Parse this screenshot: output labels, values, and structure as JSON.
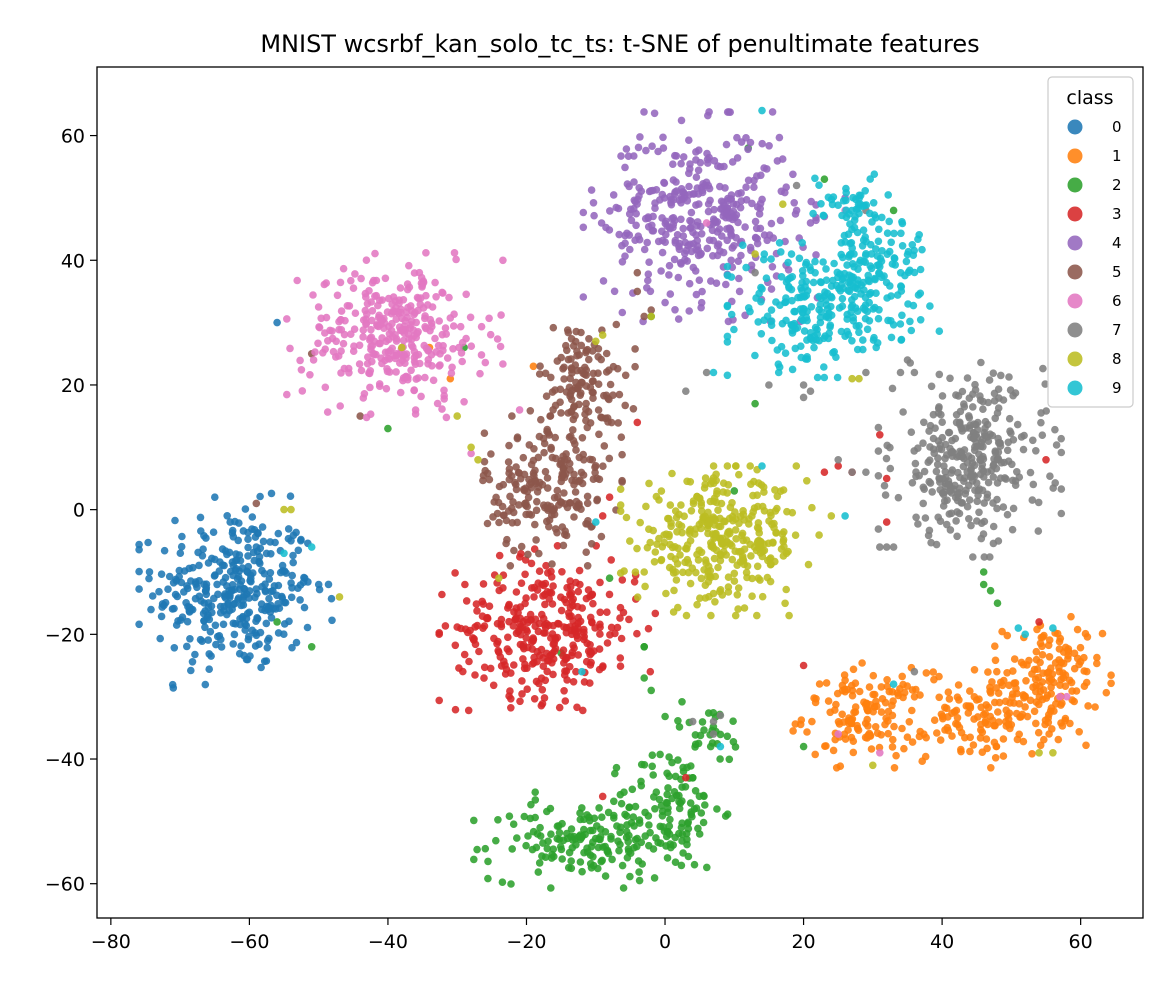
{
  "chart_data": {
    "type": "scatter",
    "title": "MNIST wcsrbf_kan_solo_tc_ts: t-SNE of penultimate features",
    "xlabel": "",
    "ylabel": "",
    "xlim": [
      -82,
      69
    ],
    "ylim": [
      -65.5,
      71
    ],
    "xticks": [
      -80,
      -60,
      -40,
      -20,
      0,
      20,
      40,
      60
    ],
    "yticks": [
      -60,
      -40,
      -20,
      0,
      20,
      40,
      60
    ],
    "grid": false,
    "legend": {
      "title": "class",
      "placement": "top-right"
    },
    "series": [
      {
        "name": "0",
        "color": "#1f77b4",
        "clusters": [
          {
            "cx": -62,
            "cy": -13,
            "sx": 5.8,
            "sy": 6.5,
            "n": 340
          }
        ],
        "points": [
          [
            -65,
            2
          ],
          [
            -54,
            -5
          ],
          [
            -52,
            -11
          ],
          [
            -50,
            -12
          ],
          [
            -56,
            30
          ]
        ]
      },
      {
        "name": "1",
        "color": "#ff7f0e",
        "clusters": [
          {
            "cx": 29,
            "cy": -33,
            "sx": 4.5,
            "sy": 3.5,
            "n": 140
          },
          {
            "cx": 47,
            "cy": -33,
            "sx": 4.5,
            "sy": 3.5,
            "n": 130
          },
          {
            "cx": 56,
            "cy": -27,
            "sx": 3.5,
            "sy": 4.5,
            "n": 130
          }
        ],
        "points": [
          [
            -34,
            26
          ],
          [
            -31,
            21
          ],
          [
            -19,
            23
          ]
        ]
      },
      {
        "name": "2",
        "color": "#2ca02c",
        "clusters": [
          {
            "cx": -12,
            "cy": -53,
            "sx": 6.5,
            "sy": 3.2,
            "n": 160
          },
          {
            "cx": 1,
            "cy": -48,
            "sx": 3.5,
            "sy": 5,
            "n": 110
          },
          {
            "cx": 6,
            "cy": -36,
            "sx": 3,
            "sy": 2.5,
            "n": 30
          }
        ],
        "points": [
          [
            -40,
            13
          ],
          [
            -29,
            26
          ],
          [
            -2,
            31
          ],
          [
            -3,
            -27
          ],
          [
            -2,
            -29
          ],
          [
            46,
            -10
          ],
          [
            46,
            -12
          ],
          [
            47,
            -13
          ],
          [
            48,
            -15
          ],
          [
            -51,
            -22
          ],
          [
            -56,
            -18
          ],
          [
            -3,
            -22
          ],
          [
            -3,
            -22
          ],
          [
            13,
            17
          ],
          [
            12,
            58
          ],
          [
            23,
            53
          ],
          [
            33,
            48
          ],
          [
            20,
            -38
          ],
          [
            10,
            3
          ],
          [
            -8,
            -11
          ],
          [
            -15,
            -23
          ]
        ]
      },
      {
        "name": "3",
        "color": "#d62728",
        "clusters": [
          {
            "cx": -17,
            "cy": -19,
            "sx": 6.5,
            "sy": 5.5,
            "n": 330
          }
        ],
        "points": [
          [
            -4,
            14
          ],
          [
            -9,
            -1
          ],
          [
            -8,
            2
          ],
          [
            23,
            6
          ],
          [
            25,
            7
          ],
          [
            27,
            6
          ],
          [
            31,
            12
          ],
          [
            32,
            -2
          ],
          [
            32,
            5
          ],
          [
            55,
            8
          ],
          [
            3,
            -43
          ],
          [
            -9,
            -46
          ],
          [
            20,
            -25
          ],
          [
            54,
            -18
          ]
        ]
      },
      {
        "name": "4",
        "color": "#9467bd",
        "clusters": [
          {
            "cx": 5,
            "cy": 47,
            "sx": 7,
            "sy": 7,
            "n": 380
          }
        ],
        "points": [
          [
            19,
            48
          ],
          [
            21,
            46
          ],
          [
            23,
            47
          ],
          [
            26,
            50
          ],
          [
            22,
            34
          ]
        ]
      },
      {
        "name": "5",
        "color": "#8c564b",
        "clusters": [
          {
            "cx": -17,
            "cy": 3,
            "sx": 4.5,
            "sy": 5,
            "n": 200
          },
          {
            "cx": -12,
            "cy": 20,
            "sx": 3.2,
            "sy": 5,
            "n": 140
          }
        ],
        "points": [
          [
            -59,
            1
          ],
          [
            -51,
            25
          ],
          [
            -44,
            15
          ],
          [
            -4,
            38
          ],
          [
            -4,
            35
          ],
          [
            -3,
            31
          ],
          [
            -2,
            32
          ]
        ]
      },
      {
        "name": "6",
        "color": "#e377c2",
        "clusters": [
          {
            "cx": -39,
            "cy": 28,
            "sx": 6.5,
            "sy": 5.5,
            "n": 330
          }
        ],
        "points": [
          [
            -28,
            9
          ],
          [
            -21,
            16
          ],
          [
            58,
            -30
          ],
          [
            57,
            -30
          ],
          [
            25,
            -36
          ],
          [
            31,
            -39
          ],
          [
            6,
            46
          ],
          [
            26,
            48
          ]
        ]
      },
      {
        "name": "7",
        "color": "#7f7f7f",
        "clusters": [
          {
            "cx": 44,
            "cy": 8,
            "sx": 5.5,
            "sy": 6.5,
            "n": 330
          }
        ],
        "points": [
          [
            6,
            22
          ],
          [
            3,
            19
          ],
          [
            20,
            20
          ],
          [
            20,
            18
          ],
          [
            21,
            19
          ],
          [
            25,
            8
          ],
          [
            27,
            6
          ],
          [
            29,
            6
          ],
          [
            29,
            22
          ],
          [
            31,
            -6
          ],
          [
            32,
            -6
          ],
          [
            33,
            -6
          ],
          [
            34,
            22
          ],
          [
            35,
            24
          ],
          [
            36,
            22
          ],
          [
            4,
            -34
          ],
          [
            7,
            -34
          ],
          [
            8,
            -33
          ],
          [
            7,
            -36
          ],
          [
            13,
            38
          ],
          [
            19,
            52
          ],
          [
            29,
            48
          ],
          [
            36,
            -26
          ],
          [
            15,
            20
          ]
        ]
      },
      {
        "name": "8",
        "color": "#bcbd22",
        "clusters": [
          {
            "cx": 8,
            "cy": -5,
            "sx": 6,
            "sy": 5,
            "n": 340
          }
        ],
        "points": [
          [
            -55,
            0
          ],
          [
            -54,
            0
          ],
          [
            -47,
            -14
          ],
          [
            -38,
            26
          ],
          [
            -27,
            8
          ],
          [
            -28,
            10
          ],
          [
            -24,
            -11
          ],
          [
            -10,
            27
          ],
          [
            -9,
            28
          ],
          [
            13,
            41
          ],
          [
            17,
            49
          ],
          [
            24,
            -1
          ],
          [
            28,
            21
          ],
          [
            27,
            21
          ],
          [
            30,
            -41
          ],
          [
            56,
            -39
          ],
          [
            54,
            -39
          ],
          [
            -30,
            15
          ],
          [
            -3,
            -10
          ],
          [
            -2,
            31
          ]
        ]
      },
      {
        "name": "9",
        "color": "#17becf",
        "clusters": [
          {
            "cx": 21,
            "cy": 32,
            "sx": 5,
            "sy": 4.5,
            "n": 200
          },
          {
            "cx": 30,
            "cy": 38,
            "sx": 4,
            "sy": 4.5,
            "n": 140
          },
          {
            "cx": 27,
            "cy": 49,
            "sx": 3,
            "sy": 2.5,
            "n": 50
          }
        ],
        "points": [
          [
            -51,
            -6
          ],
          [
            -55,
            -7
          ],
          [
            7,
            22
          ],
          [
            9,
            39
          ],
          [
            14,
            64
          ],
          [
            26,
            -1
          ],
          [
            14,
            7
          ],
          [
            -10,
            -2
          ],
          [
            -12,
            -26
          ],
          [
            33,
            -28
          ],
          [
            51,
            -19
          ],
          [
            52,
            -20
          ],
          [
            56,
            -19
          ],
          [
            8,
            -38
          ]
        ]
      }
    ]
  }
}
